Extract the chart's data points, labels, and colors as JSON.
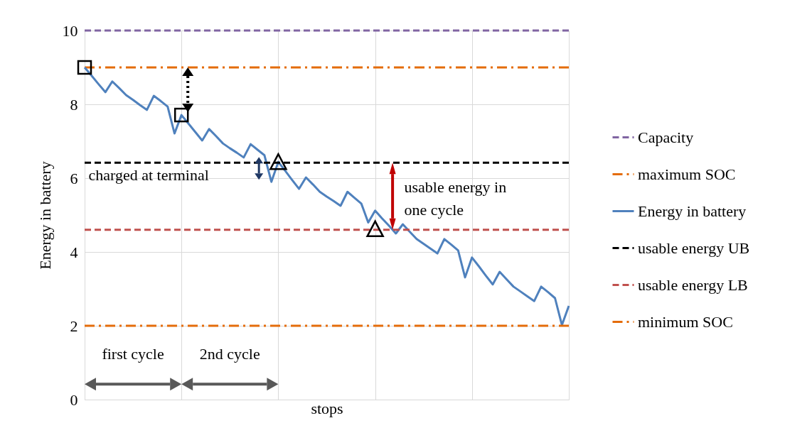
{
  "chart_data": {
    "type": "line",
    "xlabel": "stops",
    "ylabel": "Energy in battery",
    "categories": [
      null,
      null,
      null,
      null,
      null,
      null,
      null,
      null,
      null,
      null,
      null,
      null,
      null,
      null,
      null,
      null,
      null,
      null,
      null,
      null,
      null,
      null,
      null,
      null,
      null,
      null,
      null,
      null,
      null,
      null,
      null,
      null,
      null,
      null,
      null,
      null,
      null,
      null,
      null,
      null,
      null,
      null,
      null,
      null,
      null,
      null,
      null,
      null,
      null,
      null,
      null,
      null,
      null,
      null,
      null,
      null,
      null,
      null,
      null,
      null,
      null,
      null,
      null,
      null,
      null,
      null,
      null,
      null,
      null,
      null,
      null
    ],
    "ylim": [
      0,
      10
    ],
    "yticks": [
      0,
      2,
      4,
      6,
      8,
      10
    ],
    "grid": true,
    "legend": "right",
    "series": [
      {
        "name": "Capacity",
        "color": "#8064a2",
        "line_style": "dashed",
        "values": [
          10,
          10,
          10,
          10,
          10,
          10,
          10,
          10,
          10,
          10,
          10,
          10,
          10,
          10,
          10,
          10,
          10,
          10,
          10,
          10,
          10,
          10,
          10,
          10,
          10,
          10,
          10,
          10,
          10,
          10,
          10,
          10,
          10,
          10,
          10,
          10,
          10,
          10,
          10,
          10,
          10,
          10,
          10,
          10,
          10,
          10,
          10,
          10,
          10,
          10,
          10,
          10,
          10,
          10,
          10,
          10,
          10,
          10,
          10,
          10,
          10,
          10,
          10,
          10,
          10,
          10,
          10,
          10,
          10,
          10,
          10
        ]
      },
      {
        "name": "maximum SOC",
        "color": "#e46c0a",
        "line_style": "dashdot",
        "values": [
          9,
          9,
          9,
          9,
          9,
          9,
          9,
          9,
          9,
          9,
          9,
          9,
          9,
          9,
          9,
          9,
          9,
          9,
          9,
          9,
          9,
          9,
          9,
          9,
          9,
          9,
          9,
          9,
          9,
          9,
          9,
          9,
          9,
          9,
          9,
          9,
          9,
          9,
          9,
          9,
          9,
          9,
          9,
          9,
          9,
          9,
          9,
          9,
          9,
          9,
          9,
          9,
          9,
          9,
          9,
          9,
          9,
          9,
          9,
          9,
          9,
          9,
          9,
          9,
          9,
          9,
          9,
          9,
          9,
          9,
          9
        ]
      },
      {
        "name": "Energy in battery",
        "color": "#4f81bd",
        "line_style": "solid",
        "values": [
          9,
          8.78,
          8.55,
          8.33,
          8.62,
          8.44,
          8.25,
          8.12,
          7.98,
          7.85,
          8.23,
          8.09,
          7.94,
          7.21,
          7.71,
          7.48,
          7.25,
          7.02,
          7.33,
          7.14,
          6.94,
          6.81,
          6.69,
          6.56,
          6.92,
          6.77,
          6.62,
          5.9,
          6.44,
          6.2,
          5.95,
          5.71,
          6.02,
          5.83,
          5.63,
          5.5,
          5.38,
          5.25,
          5.63,
          5.47,
          5.31,
          4.8,
          5.12,
          4.91,
          4.71,
          4.5,
          4.75,
          4.55,
          4.35,
          4.22,
          4.09,
          3.96,
          4.35,
          4.2,
          4.04,
          3.31,
          3.85,
          3.61,
          3.36,
          3.12,
          3.46,
          3.26,
          3.06,
          2.93,
          2.8,
          2.67,
          3.06,
          2.91,
          2.75,
          2.02,
          2.54
        ]
      },
      {
        "name": "usable energy UB",
        "color": "#000000",
        "line_style": "dashed",
        "values": [
          6.42,
          6.42,
          6.42,
          6.42,
          6.42,
          6.42,
          6.42,
          6.42,
          6.42,
          6.42,
          6.42,
          6.42,
          6.42,
          6.42,
          6.42,
          6.42,
          6.42,
          6.42,
          6.42,
          6.42,
          6.42,
          6.42,
          6.42,
          6.42,
          6.42,
          6.42,
          6.42,
          6.42,
          6.42,
          6.42,
          6.42,
          6.42,
          6.42,
          6.42,
          6.42,
          6.42,
          6.42,
          6.42,
          6.42,
          6.42,
          6.42,
          6.42,
          6.42,
          6.42,
          6.42,
          6.42,
          6.42,
          6.42,
          6.42,
          6.42,
          6.42,
          6.42,
          6.42,
          6.42,
          6.42,
          6.42,
          6.42,
          6.42,
          6.42,
          6.42,
          6.42,
          6.42,
          6.42,
          6.42,
          6.42,
          6.42,
          6.42,
          6.42,
          6.42,
          6.42,
          6.42
        ]
      },
      {
        "name": "usable energy LB",
        "color": "#c0504d",
        "line_style": "dashed",
        "values": [
          4.6,
          4.6,
          4.6,
          4.6,
          4.6,
          4.6,
          4.6,
          4.6,
          4.6,
          4.6,
          4.6,
          4.6,
          4.6,
          4.6,
          4.6,
          4.6,
          4.6,
          4.6,
          4.6,
          4.6,
          4.6,
          4.6,
          4.6,
          4.6,
          4.6,
          4.6,
          4.6,
          4.6,
          4.6,
          4.6,
          4.6,
          4.6,
          4.6,
          4.6,
          4.6,
          4.6,
          4.6,
          4.6,
          4.6,
          4.6,
          4.6,
          4.6,
          4.6,
          4.6,
          4.6,
          4.6,
          4.6,
          4.6,
          4.6,
          4.6,
          4.6,
          4.6,
          4.6,
          4.6,
          4.6,
          4.6,
          4.6,
          4.6,
          4.6,
          4.6,
          4.6,
          4.6,
          4.6,
          4.6,
          4.6,
          4.6,
          4.6,
          4.6,
          4.6,
          4.6,
          4.6
        ]
      },
      {
        "name": "minimum SOC",
        "color": "#e46c0a",
        "line_style": "dashdot",
        "values": [
          2,
          2,
          2,
          2,
          2,
          2,
          2,
          2,
          2,
          2,
          2,
          2,
          2,
          2,
          2,
          2,
          2,
          2,
          2,
          2,
          2,
          2,
          2,
          2,
          2,
          2,
          2,
          2,
          2,
          2,
          2,
          2,
          2,
          2,
          2,
          2,
          2,
          2,
          2,
          2,
          2,
          2,
          2,
          2,
          2,
          2,
          2,
          2,
          2,
          2,
          2,
          2,
          2,
          2,
          2,
          2,
          2,
          2,
          2,
          2,
          2,
          2,
          2,
          2,
          2,
          2,
          2,
          2,
          2,
          2,
          2
        ]
      }
    ],
    "annotations": [
      "charged at terminal",
      "usable energy in one cycle",
      "first cycle",
      "2nd cycle"
    ]
  }
}
